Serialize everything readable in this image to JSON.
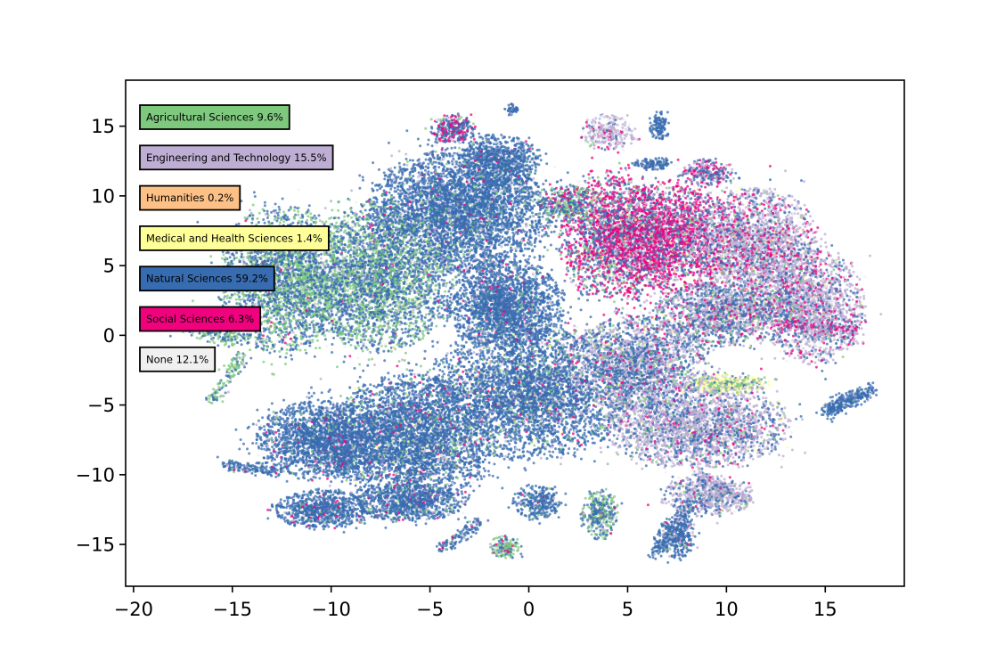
{
  "chart_data": {
    "type": "scatter",
    "title": "",
    "xlabel": "",
    "ylabel": "",
    "xlim": [
      -20.4,
      19
    ],
    "ylim": [
      -18,
      18.3
    ],
    "xticks": [
      -20,
      -15,
      -10,
      -5,
      0,
      5,
      10,
      15
    ],
    "xtick_labels": [
      "−20",
      "−15",
      "−10",
      "−5",
      "0",
      "5",
      "10",
      "15"
    ],
    "yticks": [
      15,
      10,
      5,
      0,
      -5,
      -10,
      -15
    ],
    "ytick_labels": [
      "15",
      "10",
      "5",
      "0",
      "−5",
      "−10",
      "−15"
    ],
    "grid": false,
    "legend_placement": "upper-left",
    "legend": [
      {
        "label": "Agricultural Sciences 9.6%",
        "color": "#7fc97f"
      },
      {
        "label": "Engineering and Technology 15.5%",
        "color": "#beaed4"
      },
      {
        "label": "Humanities 0.2%",
        "color": "#fdc086"
      },
      {
        "label": "Medical and Health Sciences 1.4%",
        "color": "#ffff99"
      },
      {
        "label": "Natural Sciences 59.2%",
        "color": "#386cb0"
      },
      {
        "label": "Social Sciences 6.3%",
        "color": "#f0027f"
      },
      {
        "label": "None 12.1%",
        "color": "#f0f0f0"
      }
    ],
    "clusters": [
      {
        "cx": -3.5,
        "cy": 9,
        "rx": 4,
        "ry": 3.8,
        "w": 10,
        "mix": [
          0.05,
          0.05,
          0,
          0,
          0.85,
          0.02,
          0.03
        ]
      },
      {
        "cx": -7.8,
        "cy": 4,
        "rx": 3.4,
        "ry": 4.5,
        "w": 8,
        "mix": [
          0.35,
          0.04,
          0,
          0.01,
          0.55,
          0.01,
          0.04
        ]
      },
      {
        "cx": -12.5,
        "cy": 4,
        "rx": 2.8,
        "ry": 4.5,
        "w": 6,
        "mix": [
          0.4,
          0.03,
          0,
          0,
          0.52,
          0.01,
          0.04
        ]
      },
      {
        "cx": -1.2,
        "cy": 2.2,
        "rx": 2.6,
        "ry": 2.8,
        "w": 5,
        "mix": [
          0.03,
          0.05,
          0,
          0,
          0.88,
          0.02,
          0.02
        ]
      },
      {
        "cx": 0,
        "cy": -4,
        "rx": 4.5,
        "ry": 4.2,
        "w": 10,
        "mix": [
          0.06,
          0.08,
          0,
          0.01,
          0.8,
          0.02,
          0.03
        ]
      },
      {
        "cx": -6,
        "cy": -7.5,
        "rx": 3.5,
        "ry": 4,
        "w": 9,
        "mix": [
          0.06,
          0.05,
          0,
          0.01,
          0.82,
          0.03,
          0.03
        ]
      },
      {
        "cx": -10.5,
        "cy": -7.5,
        "rx": 2.8,
        "ry": 2.4,
        "w": 5,
        "mix": [
          0.04,
          0.04,
          0,
          0,
          0.86,
          0.03,
          0.03
        ]
      },
      {
        "cx": -10.5,
        "cy": -12.5,
        "rx": 2.2,
        "ry": 1.2,
        "w": 2,
        "mix": [
          0.04,
          0.03,
          0,
          0,
          0.86,
          0.04,
          0.03
        ]
      },
      {
        "cx": -6,
        "cy": -12,
        "rx": 2.4,
        "ry": 1.2,
        "w": 2,
        "mix": [
          0.05,
          0.04,
          0,
          0,
          0.84,
          0.04,
          0.03
        ]
      },
      {
        "cx": -1.5,
        "cy": 12.5,
        "rx": 1.8,
        "ry": 1.6,
        "w": 2,
        "mix": [
          0.03,
          0.03,
          0,
          0,
          0.9,
          0.02,
          0.02
        ]
      },
      {
        "cx": -3.8,
        "cy": 14.8,
        "rx": 1,
        "ry": 0.9,
        "w": 0.8,
        "mix": [
          0.05,
          0.05,
          0,
          0,
          0.55,
          0.3,
          0.05
        ]
      },
      {
        "cx": 4.2,
        "cy": 7,
        "rx": 2.3,
        "ry": 4,
        "w": 5,
        "mix": [
          0.12,
          0.08,
          0,
          0.01,
          0.35,
          0.4,
          0.04
        ]
      },
      {
        "cx": 7.2,
        "cy": 7,
        "rx": 2.8,
        "ry": 3.5,
        "w": 6,
        "mix": [
          0.04,
          0.18,
          0.01,
          0.01,
          0.26,
          0.46,
          0.04
        ]
      },
      {
        "cx": 11.5,
        "cy": 6,
        "rx": 2.8,
        "ry": 4,
        "w": 6,
        "mix": [
          0.03,
          0.5,
          0.01,
          0.01,
          0.22,
          0.15,
          0.08
        ]
      },
      {
        "cx": 14.5,
        "cy": 2,
        "rx": 2.2,
        "ry": 3.5,
        "w": 4,
        "mix": [
          0.02,
          0.55,
          0,
          0.01,
          0.22,
          0.1,
          0.1
        ]
      },
      {
        "cx": 10,
        "cy": 1.5,
        "rx": 3.2,
        "ry": 2,
        "w": 4,
        "mix": [
          0.08,
          0.35,
          0,
          0.02,
          0.4,
          0.1,
          0.05
        ]
      },
      {
        "cx": 8.5,
        "cy": -6.5,
        "rx": 4,
        "ry": 2.6,
        "w": 6,
        "mix": [
          0.04,
          0.55,
          0,
          0.01,
          0.3,
          0.04,
          0.06
        ]
      },
      {
        "cx": 5.5,
        "cy": -2,
        "rx": 3,
        "ry": 3,
        "w": 5,
        "mix": [
          0.07,
          0.4,
          0,
          0.01,
          0.42,
          0.05,
          0.05
        ]
      },
      {
        "cx": 10,
        "cy": -3.5,
        "rx": 2,
        "ry": 0.6,
        "w": 1,
        "mix": [
          0.25,
          0.2,
          0,
          0.4,
          0.1,
          0,
          0.05
        ]
      },
      {
        "cx": 9,
        "cy": -11.5,
        "rx": 2,
        "ry": 1.3,
        "w": 1.5,
        "mix": [
          0.04,
          0.6,
          0,
          0,
          0.3,
          0.02,
          0.04
        ]
      },
      {
        "cx": 7.5,
        "cy": -14.5,
        "rx": 0.9,
        "ry": 1.3,
        "w": 0.8,
        "mix": [
          0.04,
          0.12,
          0,
          0,
          0.8,
          0.02,
          0.02
        ]
      },
      {
        "cx": 3.6,
        "cy": -12.8,
        "rx": 0.8,
        "ry": 1.6,
        "w": 0.8,
        "mix": [
          0.4,
          0.05,
          0,
          0,
          0.5,
          0.02,
          0.03
        ]
      },
      {
        "cx": 0.4,
        "cy": -12,
        "rx": 1.1,
        "ry": 1.1,
        "w": 0.7,
        "mix": [
          0.04,
          0.04,
          0,
          0,
          0.88,
          0.02,
          0.02
        ]
      },
      {
        "cx": -1.2,
        "cy": -15.2,
        "rx": 0.7,
        "ry": 0.7,
        "w": 0.4,
        "mix": [
          0.5,
          0.05,
          0,
          0,
          0.35,
          0.05,
          0.05
        ]
      },
      {
        "cx": 4,
        "cy": 14.5,
        "rx": 1.2,
        "ry": 1.1,
        "w": 0.8,
        "mix": [
          0.02,
          0.55,
          0,
          0,
          0.1,
          0.08,
          0.25
        ]
      },
      {
        "cx": 6.6,
        "cy": 15,
        "rx": 0.5,
        "ry": 0.9,
        "w": 0.3,
        "mix": [
          0,
          0.05,
          0,
          0,
          0.9,
          0.02,
          0.03
        ]
      },
      {
        "cx": -0.8,
        "cy": 16.2,
        "rx": 0.3,
        "ry": 0.4,
        "w": 0.1,
        "mix": [
          0,
          0.05,
          0,
          0,
          0.9,
          0,
          0.05
        ]
      },
      {
        "cx": 9,
        "cy": 11.7,
        "rx": 1.2,
        "ry": 0.8,
        "w": 0.6,
        "mix": [
          0,
          0.2,
          0,
          0,
          0.5,
          0.25,
          0.05
        ]
      },
      {
        "cx": 6.3,
        "cy": 12.3,
        "rx": 0.8,
        "ry": 0.4,
        "w": 0.3,
        "mix": [
          0,
          0.1,
          0,
          0,
          0.85,
          0,
          0.05
        ]
      },
      {
        "cx": 2,
        "cy": 9.5,
        "rx": 1.3,
        "ry": 1.2,
        "w": 0.8,
        "mix": [
          0.3,
          0.05,
          0,
          0,
          0.45,
          0.15,
          0.05
        ]
      }
    ],
    "streaks": [
      {
        "x0": 15,
        "y0": -5.5,
        "x1": 17.3,
        "y1": -3.9,
        "width": 0.5,
        "w": 0.8,
        "mix": [
          0.02,
          0.05,
          0,
          0,
          0.9,
          0,
          0.03
        ]
      },
      {
        "x0": 6.3,
        "y0": -15.8,
        "x1": 8.2,
        "y1": -12,
        "width": 0.35,
        "w": 0.4,
        "mix": [
          0.02,
          0.15,
          0,
          0,
          0.8,
          0,
          0.03
        ]
      },
      {
        "x0": 8.5,
        "y0": -10,
        "x1": 11,
        "y1": -12,
        "width": 0.4,
        "w": 0.4,
        "mix": [
          0.03,
          0.7,
          0,
          0,
          0.2,
          0.02,
          0.05
        ]
      },
      {
        "x0": -16,
        "y0": -4.7,
        "x1": -14.5,
        "y1": -1.5,
        "width": 0.4,
        "w": 0.3,
        "mix": [
          0.6,
          0.05,
          0,
          0,
          0.3,
          0,
          0.05
        ]
      },
      {
        "x0": -15.5,
        "y0": -9.3,
        "x1": -12.5,
        "y1": -9.8,
        "width": 0.4,
        "w": 0.4,
        "mix": [
          0.05,
          0.05,
          0,
          0,
          0.85,
          0.02,
          0.03
        ]
      },
      {
        "x0": -4.5,
        "y0": -15.5,
        "x1": -2.5,
        "y1": -13.3,
        "width": 0.35,
        "w": 0.3,
        "mix": [
          0.05,
          0.05,
          0,
          0,
          0.82,
          0.05,
          0.03
        ]
      },
      {
        "x0": -18.5,
        "y0": 1.5,
        "x1": -14.5,
        "y1": -0.5,
        "width": 0.7,
        "w": 0.7,
        "mix": [
          0.5,
          0.05,
          0,
          0,
          0.4,
          0,
          0.05
        ]
      },
      {
        "x0": 12.5,
        "y0": 0.8,
        "x1": 16.5,
        "y1": 0.3,
        "width": 0.5,
        "w": 0.6,
        "mix": [
          0.02,
          0.4,
          0,
          0,
          0.2,
          0.3,
          0.08
        ]
      }
    ]
  }
}
